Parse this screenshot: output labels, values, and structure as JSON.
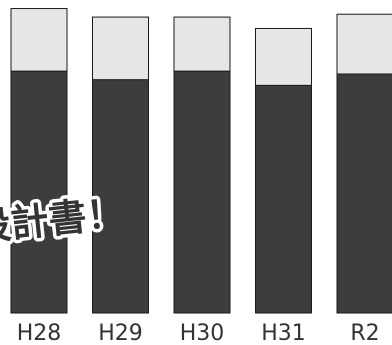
{
  "chart_data": {
    "type": "bar",
    "stacked": true,
    "categories": [
      "H28",
      "H29",
      "H30",
      "H31",
      "R2"
    ],
    "series": [
      {
        "values": [
          85,
          82,
          85,
          80,
          84
        ],
        "color": "#3d3d3d"
      },
      {
        "values": [
          22,
          22,
          19,
          20,
          21
        ],
        "color": "#e6e6e6"
      }
    ],
    "ylim": [
      0,
      110
    ],
    "grid": false,
    "legend": "none"
  },
  "overlay": {
    "text": "設計書！"
  }
}
